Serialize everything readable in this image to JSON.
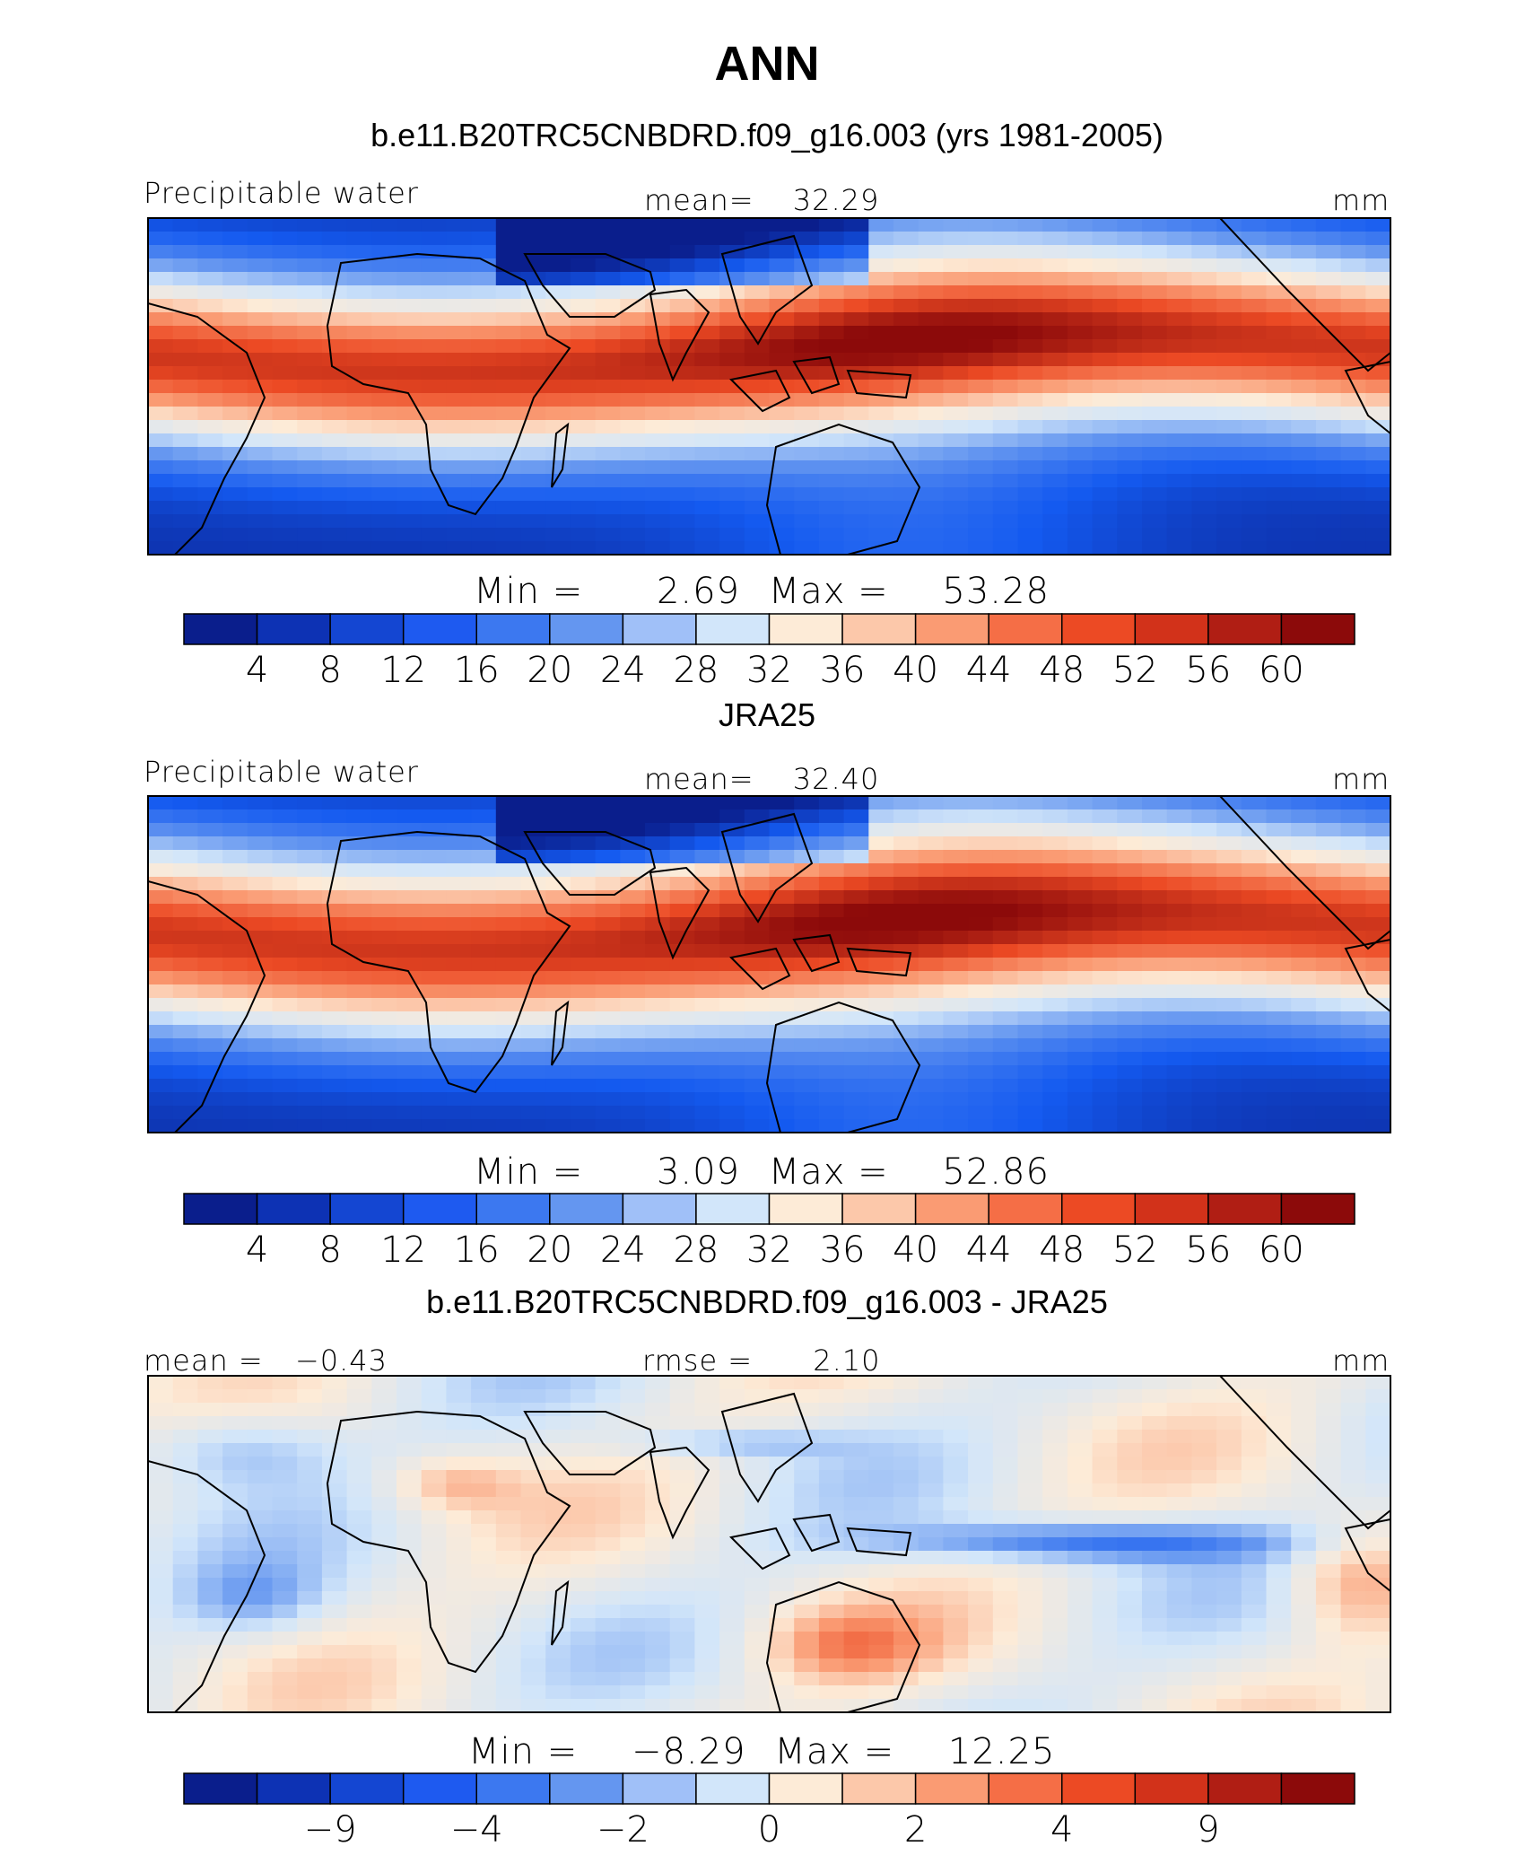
{
  "main_title": "ANN",
  "chart_data": [
    {
      "type": "heatmap",
      "title": "b.e11.B20TRC5CNBDRD.f09_g16.003 (yrs 1981-2005)",
      "field_label": "Precipitable water",
      "stat_label": "mean=",
      "stat_value": "32.29",
      "units": "mm",
      "min_label": "Min =",
      "min_value": "2.69",
      "max_label": "Max =",
      "max_value": "53.28",
      "colorbar_ticks": [
        "4",
        "8",
        "12",
        "16",
        "20",
        "24",
        "28",
        "32",
        "36",
        "40",
        "44",
        "48",
        "52",
        "56",
        "60"
      ],
      "colorbar_colors": [
        "#0a1e8c",
        "#0d32b4",
        "#1446d2",
        "#1e5af0",
        "#3c78f0",
        "#6496f0",
        "#a0c0f8",
        "#d2e6fa",
        "#fdebd7",
        "#fcc8aa",
        "#fa9b73",
        "#f56e46",
        "#ec4a24",
        "#d2321a",
        "#b01e14",
        "#8c0a0a"
      ],
      "ocean_value_range": [
        2.69,
        53.28
      ]
    },
    {
      "type": "heatmap",
      "title": "JRA25",
      "field_label": "Precipitable water",
      "stat_label": "mean=",
      "stat_value": "32.40",
      "units": "mm",
      "min_label": "Min =",
      "min_value": "3.09",
      "max_label": "Max =",
      "max_value": "52.86",
      "colorbar_ticks": [
        "4",
        "8",
        "12",
        "16",
        "20",
        "24",
        "28",
        "32",
        "36",
        "40",
        "44",
        "48",
        "52",
        "56",
        "60"
      ],
      "colorbar_colors": [
        "#0a1e8c",
        "#0d32b4",
        "#1446d2",
        "#1e5af0",
        "#3c78f0",
        "#6496f0",
        "#a0c0f8",
        "#d2e6fa",
        "#fdebd7",
        "#fcc8aa",
        "#fa9b73",
        "#f56e46",
        "#ec4a24",
        "#d2321a",
        "#b01e14",
        "#8c0a0a"
      ],
      "ocean_value_range": [
        3.09,
        52.86
      ]
    },
    {
      "type": "heatmap",
      "title": "b.e11.B20TRC5CNBDRD.f09_g16.003 - JRA25",
      "stat_label": "mean =",
      "stat_value": "−0.43",
      "rmse_label": "rmse =",
      "rmse_value": "2.10",
      "units": "mm",
      "min_label": "Min =",
      "min_value": "−8.29",
      "max_label": "Max =",
      "max_value": "12.25",
      "colorbar_ticks": [
        "−9",
        "−4",
        "−2",
        "0",
        "2",
        "4",
        "9"
      ],
      "colorbar_colors": [
        "#0a1e8c",
        "#0d32b4",
        "#1446d2",
        "#1e5af0",
        "#3c78f0",
        "#6496f0",
        "#a0c0f8",
        "#d2e6fa",
        "#fdebd7",
        "#fcc8aa",
        "#fa9b73",
        "#f56e46",
        "#ec4a24",
        "#d2321a",
        "#b01e14",
        "#8c0a0a"
      ],
      "ocean_value_range": [
        -8.29,
        12.25
      ]
    }
  ]
}
